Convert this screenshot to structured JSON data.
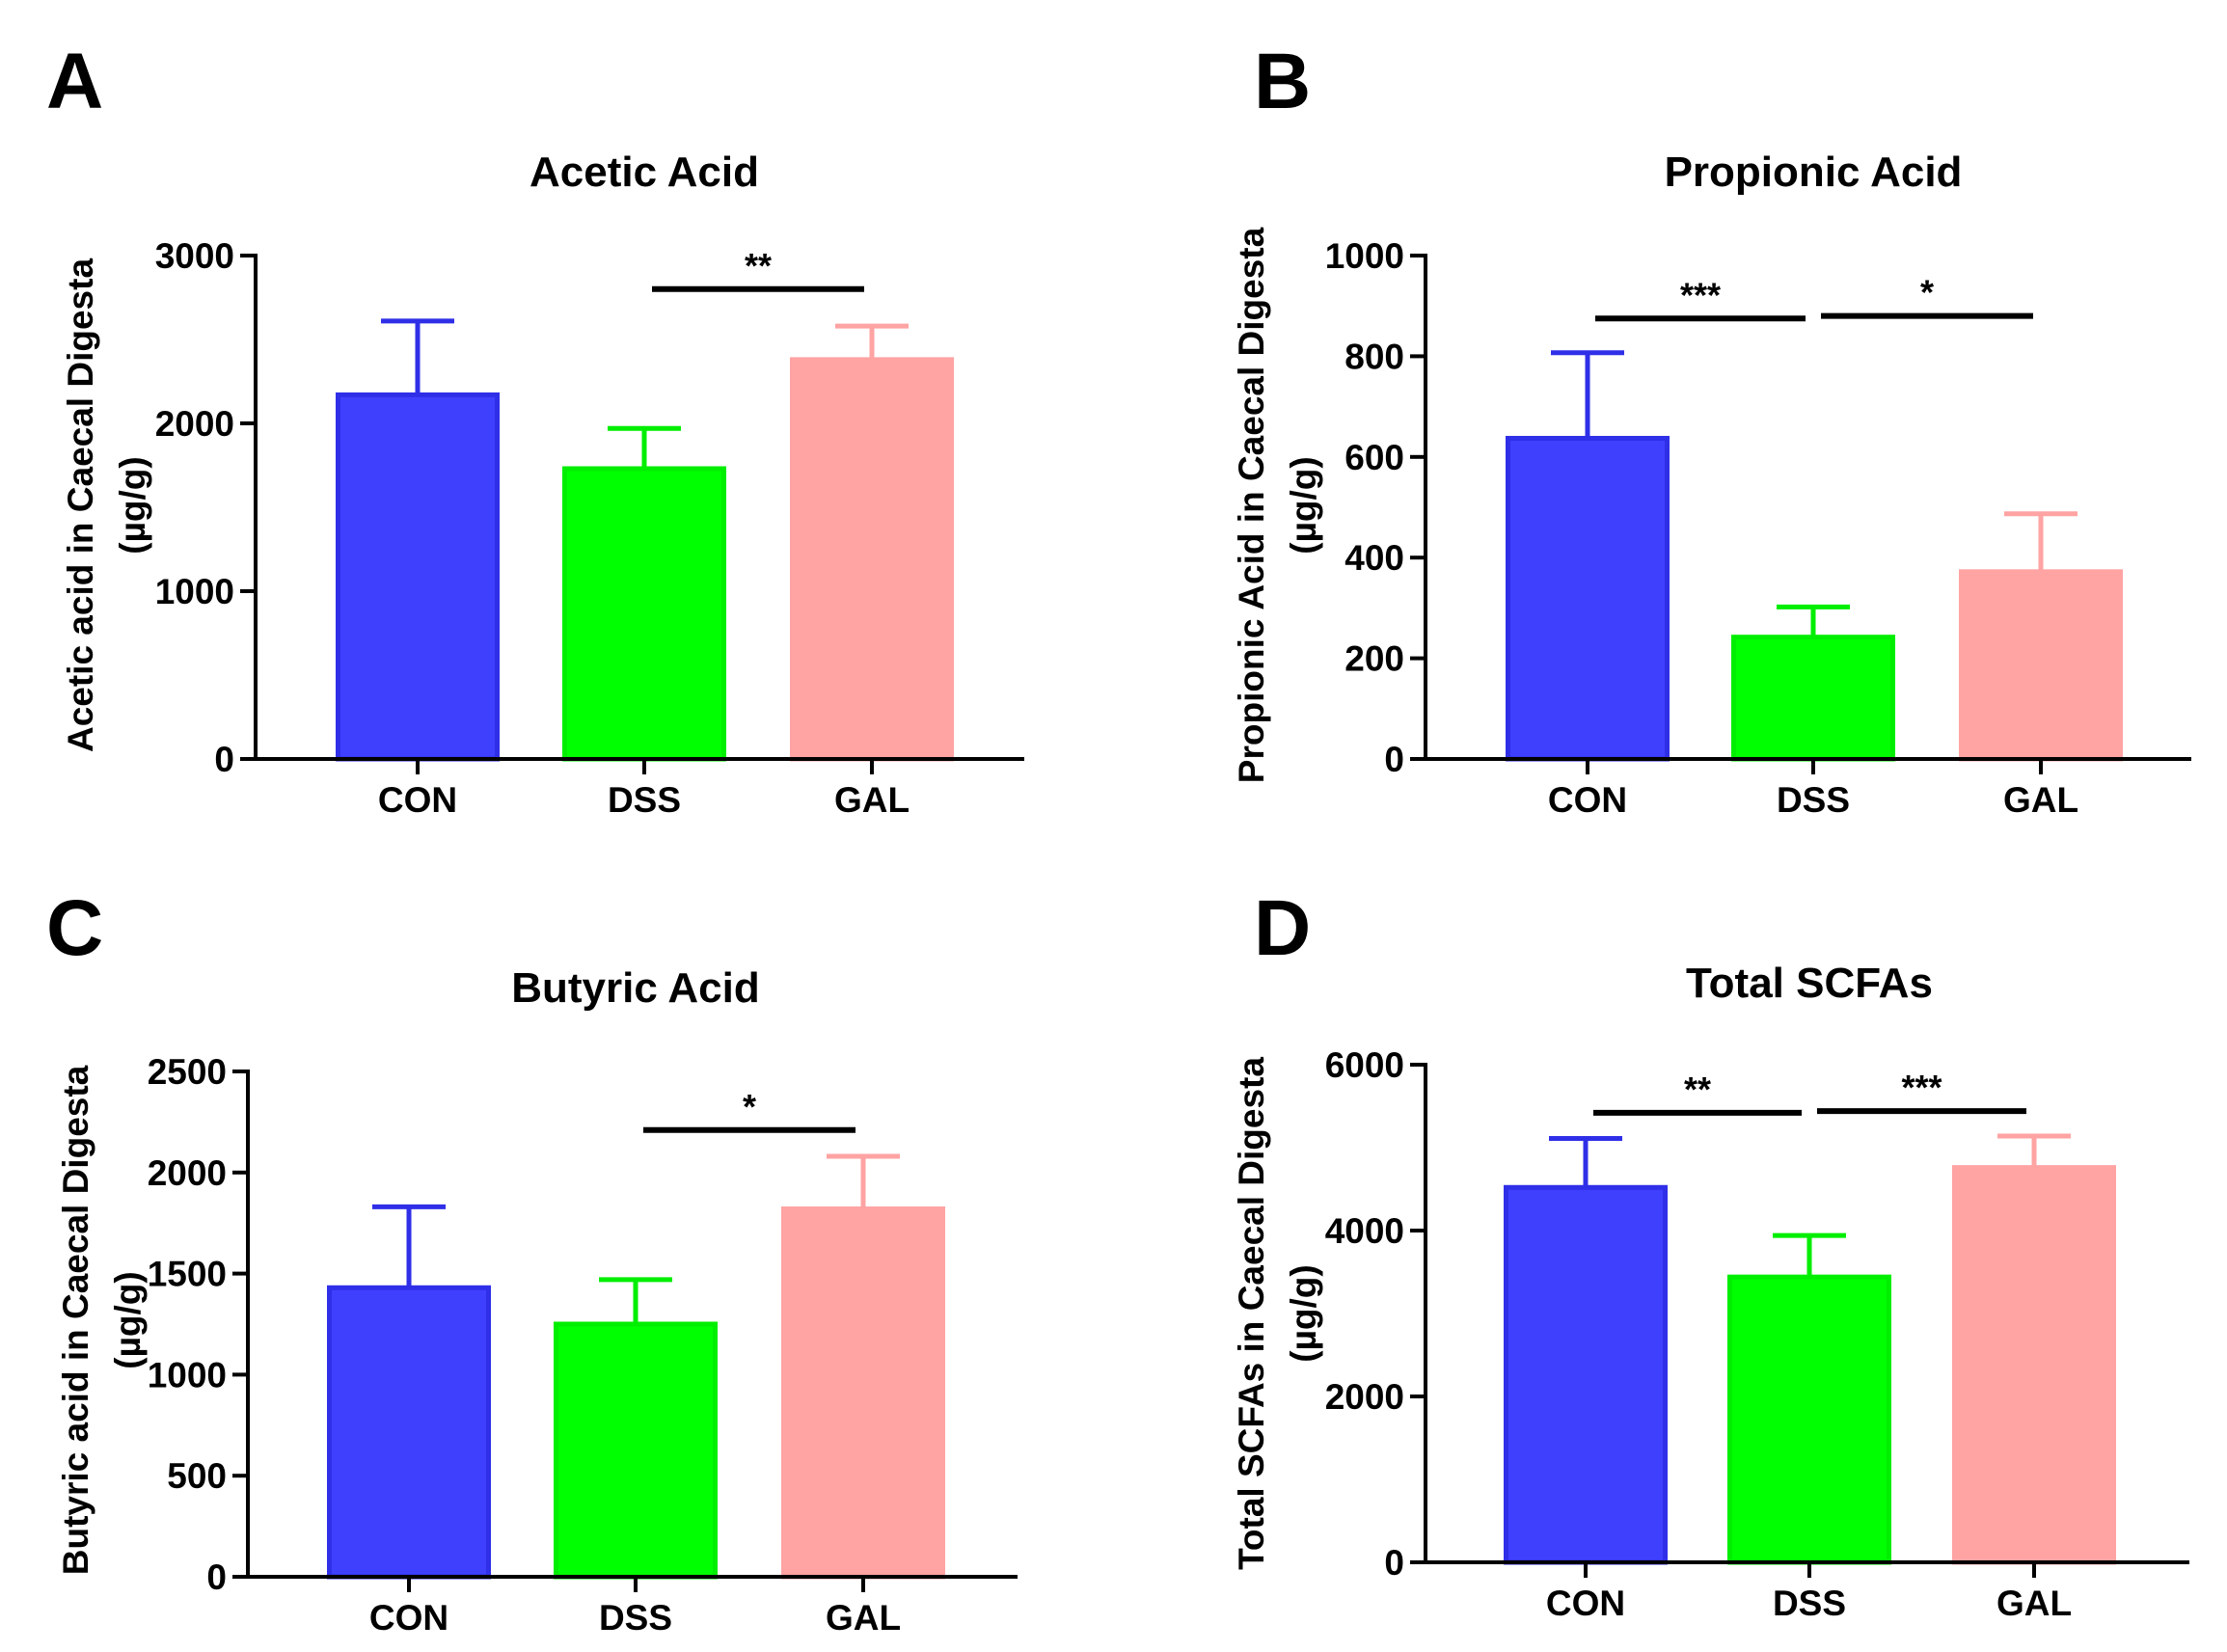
{
  "colors": {
    "CON_fill": "#3F3FFE",
    "CON_edge": "#2F2FE8",
    "DSS_fill": "#00FF00",
    "DSS_edge": "#00EE00",
    "GAL_fill": "#FFA3A3",
    "GAL_edge": "#FFA3A3",
    "axis": "#000000"
  },
  "chart_data": [
    {
      "panel": "A",
      "type": "bar",
      "title": "Acetic Acid",
      "ylabel": [
        "Acetic acid in Caecal Digesta",
        "(µg/g)"
      ],
      "categories": [
        "CON",
        "DSS",
        "GAL"
      ],
      "values": [
        2170,
        1730,
        2380
      ],
      "errors": [
        440,
        240,
        200
      ],
      "ylim": [
        0,
        3000
      ],
      "yticks": [
        0,
        1000,
        2000,
        3000
      ],
      "significance": [
        {
          "from": "DSS",
          "to": "GAL",
          "label": "**",
          "y": 2800
        }
      ]
    },
    {
      "panel": "B",
      "type": "bar",
      "title": "Propionic Acid",
      "ylabel": [
        "Propionic Acid in Caecal Digesta",
        "(µg/g)"
      ],
      "categories": [
        "CON",
        "DSS",
        "GAL"
      ],
      "values": [
        637,
        242,
        372
      ],
      "errors": [
        170,
        60,
        115
      ],
      "ylim": [
        0,
        1000
      ],
      "yticks": [
        0,
        200,
        400,
        600,
        800,
        1000
      ],
      "significance": [
        {
          "from": "CON",
          "to": "DSS",
          "label": "***",
          "y": 875
        },
        {
          "from": "DSS",
          "to": "GAL",
          "label": "*",
          "y": 880
        }
      ]
    },
    {
      "panel": "C",
      "type": "bar",
      "title": "Butyric Acid",
      "ylabel": [
        "Butyric acid in Caecal Digesta",
        "(µg/g)"
      ],
      "categories": [
        "CON",
        "DSS",
        "GAL"
      ],
      "values": [
        1430,
        1250,
        1820
      ],
      "errors": [
        400,
        220,
        260
      ],
      "ylim": [
        0,
        2500
      ],
      "yticks": [
        0,
        500,
        1000,
        1500,
        2000,
        2500
      ],
      "significance": [
        {
          "from": "DSS",
          "to": "GAL",
          "label": "*",
          "y": 2210
        }
      ]
    },
    {
      "panel": "D",
      "type": "bar",
      "title": "Total SCFAs",
      "ylabel": [
        "Total SCFAs in Caecal Digesta",
        "(µg/g)"
      ],
      "categories": [
        "CON",
        "DSS",
        "GAL"
      ],
      "values": [
        4520,
        3440,
        4760
      ],
      "errors": [
        590,
        500,
        380
      ],
      "ylim": [
        0,
        6000
      ],
      "yticks": [
        0,
        2000,
        4000,
        6000
      ],
      "significance": [
        {
          "from": "CON",
          "to": "DSS",
          "label": "**",
          "y": 5420
        },
        {
          "from": "DSS",
          "to": "GAL",
          "label": "***",
          "y": 5440
        }
      ]
    }
  ]
}
